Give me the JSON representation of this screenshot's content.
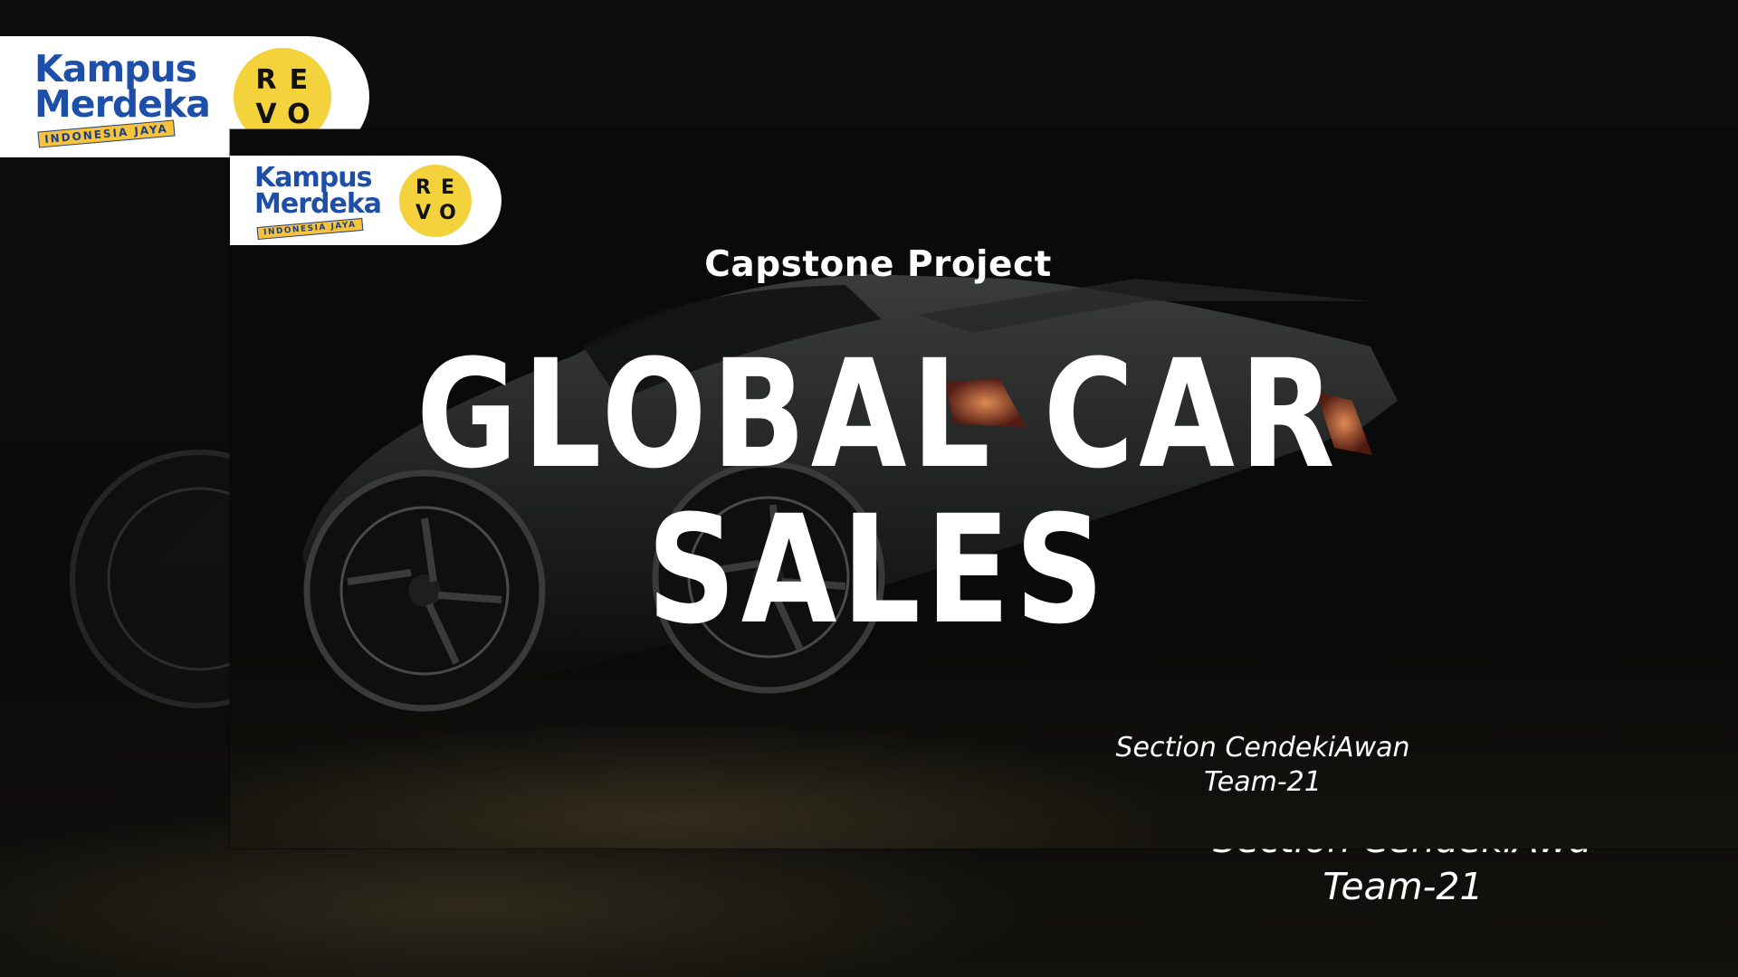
{
  "slide": {
    "eyebrow": "Capstone Project",
    "title_line1": "GLOBAL  CAR",
    "title_line2": "SALES",
    "credit_front": {
      "section": "Section CendekiAwan",
      "team": "Team-21"
    },
    "credit_back": {
      "section": "Section CendekiAwan",
      "team": "Team-21"
    }
  },
  "logos": {
    "kampus_merdeka": {
      "line1": "Kampus",
      "line2": "Merdeka",
      "ribbon": "INDONESIA JAYA"
    },
    "revo": {
      "letters": [
        "R",
        "E",
        "V",
        "O"
      ]
    }
  },
  "colors": {
    "background": "#0e0e0e",
    "text": "#ffffff",
    "badge": "#ffffff",
    "kampus_blue": "#1d4fa8",
    "ribbon_yellow": "#f6c33a",
    "revo_yellow": "#f3d23b"
  }
}
